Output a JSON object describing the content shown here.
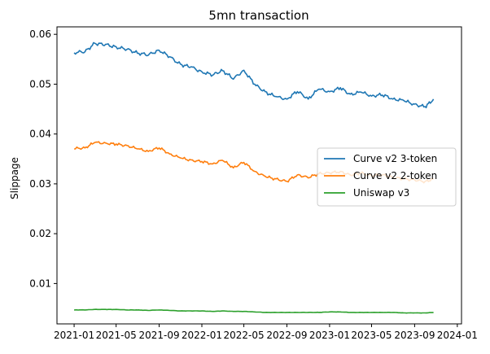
{
  "chart_data": {
    "type": "line",
    "title": "5mn transaction",
    "xlabel": "",
    "ylabel": "Slippage",
    "x_tick_labels": [
      "2021-01",
      "2021-05",
      "2021-09",
      "2022-01",
      "2022-05",
      "2022-09",
      "2023-01",
      "2023-05",
      "2023-09",
      "2024-01"
    ],
    "y_ticks": [
      0.01,
      0.02,
      0.03,
      0.04,
      0.05,
      0.06
    ],
    "y_tick_labels": [
      "0.01",
      "0.02",
      "0.03",
      "0.04",
      "0.05",
      "0.06"
    ],
    "xlim": [
      "2020-11-13",
      "2024-01-13"
    ],
    "ylim": [
      0.0019,
      0.0615
    ],
    "grid": false,
    "legend_position": "center-right",
    "x": [
      "2021-01-01",
      "2021-02-01",
      "2021-03-01",
      "2021-04-01",
      "2021-05-01",
      "2021-06-01",
      "2021-07-01",
      "2021-08-01",
      "2021-09-01",
      "2021-10-01",
      "2021-11-01",
      "2021-12-01",
      "2022-01-01",
      "2022-02-01",
      "2022-03-01",
      "2022-04-01",
      "2022-05-01",
      "2022-06-01",
      "2022-07-01",
      "2022-08-01",
      "2022-09-01",
      "2022-10-01",
      "2022-11-01",
      "2022-12-01",
      "2023-01-01",
      "2023-02-01",
      "2023-03-01",
      "2023-04-01",
      "2023-05-01",
      "2023-06-01",
      "2023-07-01",
      "2023-08-01",
      "2023-09-01",
      "2023-10-01",
      "2023-10-25"
    ],
    "series": [
      {
        "name": "Curve v2 3-token",
        "color": "#1f77b4",
        "values": [
          0.0563,
          0.0565,
          0.0582,
          0.058,
          0.0575,
          0.057,
          0.0562,
          0.0558,
          0.0568,
          0.0555,
          0.054,
          0.0535,
          0.0525,
          0.0518,
          0.0527,
          0.051,
          0.0528,
          0.05,
          0.0485,
          0.0475,
          0.047,
          0.0485,
          0.047,
          0.049,
          0.0485,
          0.0493,
          0.048,
          0.0484,
          0.0476,
          0.0478,
          0.047,
          0.0467,
          0.046,
          0.0455,
          0.047
        ]
      },
      {
        "name": "Curve v2 2-token",
        "color": "#ff7f0e",
        "values": [
          0.037,
          0.0372,
          0.0383,
          0.0382,
          0.038,
          0.0377,
          0.037,
          0.0365,
          0.0372,
          0.036,
          0.0352,
          0.0348,
          0.0345,
          0.034,
          0.0347,
          0.0332,
          0.0343,
          0.0325,
          0.0315,
          0.031,
          0.0305,
          0.0318,
          0.0312,
          0.032,
          0.0322,
          0.0325,
          0.0318,
          0.0322,
          0.0316,
          0.0318,
          0.0312,
          0.031,
          0.0308,
          0.0305,
          0.031
        ]
      },
      {
        "name": "Uniswap v3",
        "color": "#2ca02c",
        "values": [
          0.0047,
          0.0047,
          0.0048,
          0.0048,
          0.0048,
          0.0047,
          0.0047,
          0.0046,
          0.0047,
          0.0046,
          0.0045,
          0.0045,
          0.0045,
          0.0044,
          0.0045,
          0.0044,
          0.0044,
          0.0043,
          0.0042,
          0.0042,
          0.0042,
          0.0042,
          0.0042,
          0.0042,
          0.0043,
          0.0043,
          0.0042,
          0.0042,
          0.0042,
          0.0042,
          0.0042,
          0.0041,
          0.0041,
          0.0041,
          0.0042
        ]
      }
    ]
  }
}
